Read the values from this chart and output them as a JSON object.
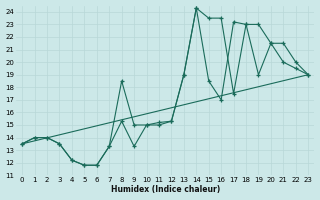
{
  "xlabel": "Humidex (Indice chaleur)",
  "xlim": [
    -0.5,
    23.5
  ],
  "ylim": [
    11,
    24.5
  ],
  "xticks": [
    0,
    1,
    2,
    3,
    4,
    5,
    6,
    7,
    8,
    9,
    10,
    11,
    12,
    13,
    14,
    15,
    16,
    17,
    18,
    19,
    20,
    21,
    22,
    23
  ],
  "yticks": [
    11,
    12,
    13,
    14,
    15,
    16,
    17,
    18,
    19,
    20,
    21,
    22,
    23,
    24
  ],
  "bg_color": "#cce8e8",
  "line_color": "#1a6b5a",
  "grid_color": "#b8d8d8",
  "curve1_x": [
    0,
    1,
    2,
    3,
    4,
    5,
    6,
    7,
    8,
    9,
    10,
    11,
    12,
    13,
    14,
    15,
    16,
    17,
    18,
    19,
    20,
    21,
    22,
    23
  ],
  "curve1_y": [
    13.5,
    14.0,
    14.0,
    13.5,
    12.2,
    11.8,
    11.8,
    13.3,
    15.3,
    13.3,
    15.0,
    15.2,
    15.3,
    19.0,
    24.3,
    23.5,
    23.5,
    17.5,
    23.0,
    23.0,
    21.5,
    20.0,
    19.5,
    19.0
  ],
  "curve2_x": [
    0,
    1,
    2,
    3,
    4,
    5,
    6,
    7,
    8,
    9,
    10,
    11,
    12,
    13,
    14,
    15,
    16,
    17,
    18,
    19,
    20,
    21,
    22,
    23
  ],
  "curve2_y": [
    13.5,
    14.0,
    14.0,
    13.5,
    12.2,
    11.8,
    11.8,
    13.3,
    18.5,
    15.0,
    15.0,
    15.0,
    15.3,
    19.0,
    24.3,
    18.5,
    17.0,
    23.2,
    23.0,
    19.0,
    21.5,
    21.5,
    20.0,
    19.0
  ],
  "line3_x": [
    0,
    23
  ],
  "line3_y": [
    13.5,
    19.0
  ]
}
